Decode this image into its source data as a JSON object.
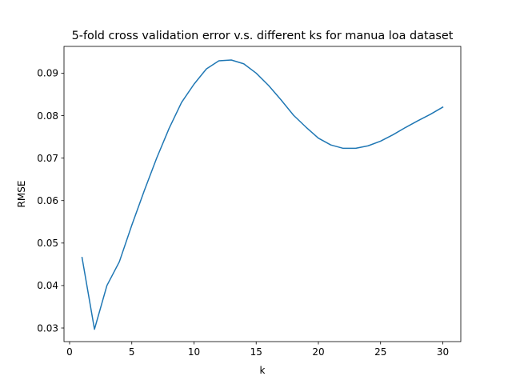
{
  "chart_data": {
    "type": "line",
    "title": "5-fold cross validation error v.s. different ks for manua loa dataset",
    "xlabel": "k",
    "ylabel": "RMSE",
    "xlim": [
      -0.45,
      31.45
    ],
    "ylim": [
      0.0268,
      0.0963
    ],
    "xticks": [
      0,
      5,
      10,
      15,
      20,
      25,
      30
    ],
    "xtick_labels": [
      "0",
      "5",
      "10",
      "15",
      "20",
      "25",
      "30"
    ],
    "yticks": [
      0.03,
      0.04,
      0.05,
      0.06,
      0.07,
      0.08,
      0.09
    ],
    "ytick_labels": [
      "0.03",
      "0.04",
      "0.05",
      "0.06",
      "0.07",
      "0.08",
      "0.09"
    ],
    "grid": false,
    "series": [
      {
        "color": "#1f77b4",
        "x": [
          1,
          2,
          3,
          4,
          5,
          6,
          7,
          8,
          9,
          10,
          11,
          12,
          13,
          14,
          15,
          16,
          17,
          18,
          19,
          20,
          21,
          22,
          23,
          24,
          25,
          26,
          27,
          28,
          29,
          30
        ],
        "y": [
          0.0466,
          0.0297,
          0.04,
          0.0456,
          0.0542,
          0.0623,
          0.07,
          0.077,
          0.0831,
          0.0874,
          0.091,
          0.0929,
          0.0931,
          0.0922,
          0.09,
          0.0871,
          0.0837,
          0.0801,
          0.0773,
          0.0747,
          0.0731,
          0.0723,
          0.0723,
          0.0729,
          0.074,
          0.0755,
          0.0772,
          0.0788,
          0.0803,
          0.082
        ]
      }
    ]
  }
}
